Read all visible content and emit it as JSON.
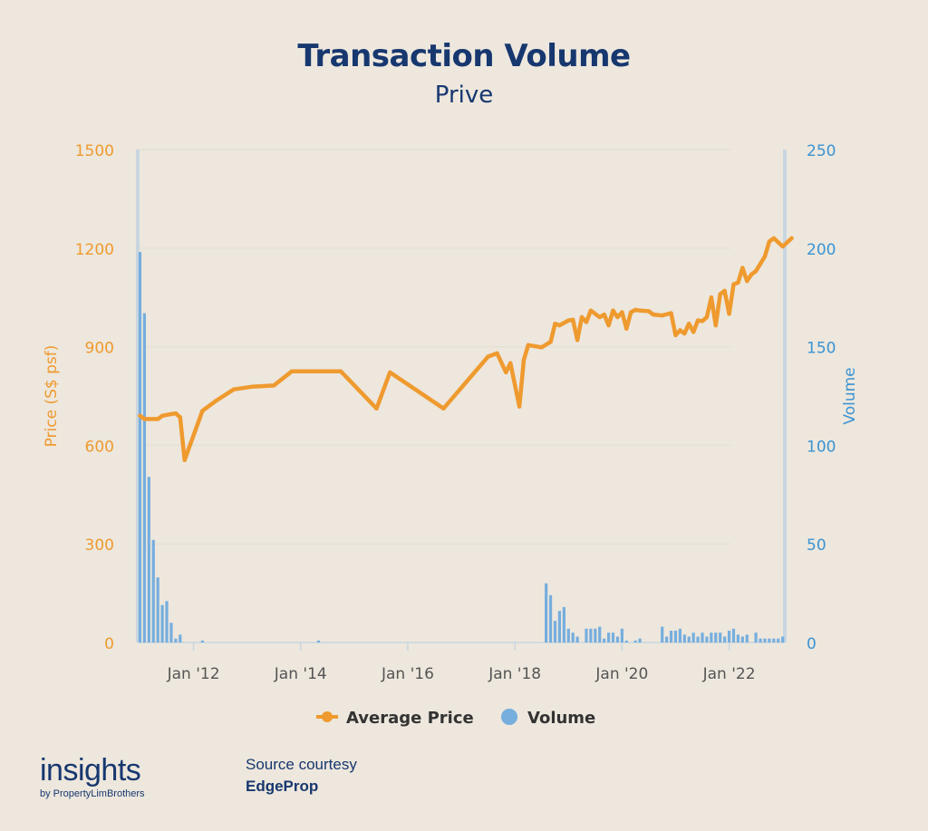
{
  "header": {
    "title": "Transaction Volume",
    "subtitle": "Prive"
  },
  "footer": {
    "brand_main": "insights",
    "brand_sub": "by PropertyLimBrothers",
    "source_label": "Source courtesy",
    "source_name": "EdgeProp"
  },
  "colors": {
    "price": "#ef9a2f",
    "volume": "#76aede",
    "volume_axis": "#3b93d3",
    "title": "#17376f",
    "grid": "#e4e0d6",
    "axis_line": "#c9d6e0",
    "background": "#ede7dd"
  },
  "chart_data": {
    "type": "line+bar",
    "title": "Transaction Volume",
    "subtitle": "Prive",
    "x_axis": {
      "type": "date",
      "range": [
        "2010-12",
        "2022-11"
      ],
      "tick_labels": [
        "Jan '12",
        "Jan '14",
        "Jan '16",
        "Jan '18",
        "Jan '20",
        "Jan '22"
      ],
      "tick_dates": [
        "2012-01",
        "2014-01",
        "2016-01",
        "2018-01",
        "2020-01",
        "2022-01"
      ]
    },
    "y_left": {
      "label": "Price (S$ psf)",
      "range": [
        0,
        1500
      ],
      "ticks": [
        "0",
        "300",
        "600",
        "900",
        "1200",
        "1500"
      ],
      "color": "#ef9a2f"
    },
    "y_right": {
      "label": "Volume",
      "range": [
        0,
        250
      ],
      "ticks": [
        "0",
        "50",
        "100",
        "150",
        "200",
        "250"
      ],
      "color": "#3b93d3"
    },
    "grid": true,
    "legend": {
      "placement": "bottom",
      "items": [
        {
          "name": "Average Price",
          "marker": "line-dot",
          "color": "#ef9a2f"
        },
        {
          "name": "Volume",
          "marker": "circle",
          "color": "#76aede"
        }
      ]
    },
    "series": [
      {
        "name": "Average Price",
        "axis": "left",
        "type": "line",
        "points": [
          [
            "2011-01",
            690
          ],
          [
            "2011-02",
            680
          ],
          [
            "2011-03",
            680
          ],
          [
            "2011-05",
            680
          ],
          [
            "2011-06",
            690
          ],
          [
            "2011-08",
            695
          ],
          [
            "2011-09",
            697
          ],
          [
            "2011-10",
            685
          ],
          [
            "2011-11",
            555
          ],
          [
            "2012-03",
            705
          ],
          [
            "2012-06",
            735
          ],
          [
            "2012-10",
            770
          ],
          [
            "2013-02",
            778
          ],
          [
            "2013-07",
            782
          ],
          [
            "2013-11",
            825
          ],
          [
            "2014-05",
            825
          ],
          [
            "2014-10",
            825
          ],
          [
            "2015-06",
            712
          ],
          [
            "2015-09",
            822
          ],
          [
            "2016-09",
            712
          ],
          [
            "2017-07",
            870
          ],
          [
            "2017-09",
            880
          ],
          [
            "2017-11",
            822
          ],
          [
            "2017-12",
            850
          ],
          [
            "2018-02",
            718
          ],
          [
            "2018-03",
            860
          ],
          [
            "2018-04",
            905
          ],
          [
            "2018-07",
            898
          ],
          [
            "2018-09",
            915
          ],
          [
            "2018-10",
            970
          ],
          [
            "2018-11",
            965
          ],
          [
            "2019-01",
            980
          ],
          [
            "2019-02",
            982
          ],
          [
            "2019-03",
            920
          ],
          [
            "2019-04",
            990
          ],
          [
            "2019-05",
            975
          ],
          [
            "2019-06",
            1010
          ],
          [
            "2019-08",
            990
          ],
          [
            "2019-09",
            998
          ],
          [
            "2019-10",
            965
          ],
          [
            "2019-11",
            1010
          ],
          [
            "2019-12",
            990
          ],
          [
            "2020-01",
            1005
          ],
          [
            "2020-02",
            955
          ],
          [
            "2020-03",
            1005
          ],
          [
            "2020-04",
            1012
          ],
          [
            "2020-05",
            1010
          ],
          [
            "2020-07",
            1008
          ],
          [
            "2020-08",
            998
          ],
          [
            "2020-10",
            995
          ],
          [
            "2020-12",
            1002
          ],
          [
            "2021-01",
            935
          ],
          [
            "2021-02",
            950
          ],
          [
            "2021-03",
            940
          ],
          [
            "2021-04",
            970
          ],
          [
            "2021-05",
            945
          ],
          [
            "2021-06",
            980
          ],
          [
            "2021-07",
            978
          ],
          [
            "2021-08",
            990
          ],
          [
            "2021-09",
            1050
          ],
          [
            "2021-10",
            965
          ],
          [
            "2021-11",
            1060
          ],
          [
            "2021-12",
            1070
          ],
          [
            "2022-01",
            1000
          ],
          [
            "2022-02",
            1090
          ],
          [
            "2022-03",
            1095
          ],
          [
            "2022-04",
            1140
          ],
          [
            "2022-05",
            1100
          ],
          [
            "2022-06",
            1120
          ],
          [
            "2022-07",
            1130
          ],
          [
            "2022-09",
            1175
          ],
          [
            "2022-10",
            1220
          ],
          [
            "2022-11",
            1230
          ],
          [
            "2023-01",
            1205
          ],
          [
            "2023-03",
            1230
          ]
        ]
      },
      {
        "name": "Volume",
        "axis": "right",
        "type": "bar",
        "points": [
          [
            "2011-01",
            198
          ],
          [
            "2011-02",
            167
          ],
          [
            "2011-03",
            84
          ],
          [
            "2011-04",
            52
          ],
          [
            "2011-05",
            33
          ],
          [
            "2011-06",
            19
          ],
          [
            "2011-07",
            21
          ],
          [
            "2011-08",
            10
          ],
          [
            "2011-09",
            2
          ],
          [
            "2011-10",
            4
          ],
          [
            "2012-03",
            1
          ],
          [
            "2014-05",
            1
          ],
          [
            "2018-08",
            30
          ],
          [
            "2018-09",
            24
          ],
          [
            "2018-10",
            11
          ],
          [
            "2018-11",
            16
          ],
          [
            "2018-12",
            18
          ],
          [
            "2019-01",
            7
          ],
          [
            "2019-02",
            5
          ],
          [
            "2019-03",
            3
          ],
          [
            "2019-05",
            7
          ],
          [
            "2019-06",
            7
          ],
          [
            "2019-07",
            7
          ],
          [
            "2019-08",
            8
          ],
          [
            "2019-09",
            2
          ],
          [
            "2019-10",
            5
          ],
          [
            "2019-11",
            5
          ],
          [
            "2019-12",
            3
          ],
          [
            "2020-01",
            7
          ],
          [
            "2020-02",
            1
          ],
          [
            "2020-04",
            1
          ],
          [
            "2020-05",
            2
          ],
          [
            "2020-10",
            8
          ],
          [
            "2020-11",
            3
          ],
          [
            "2020-12",
            6
          ],
          [
            "2021-01",
            6
          ],
          [
            "2021-02",
            7
          ],
          [
            "2021-03",
            4
          ],
          [
            "2021-04",
            3
          ],
          [
            "2021-05",
            5
          ],
          [
            "2021-06",
            3
          ],
          [
            "2021-07",
            5
          ],
          [
            "2021-08",
            3
          ],
          [
            "2021-09",
            5
          ],
          [
            "2021-10",
            5
          ],
          [
            "2021-11",
            5
          ],
          [
            "2021-12",
            3
          ],
          [
            "2022-01",
            6
          ],
          [
            "2022-02",
            7
          ],
          [
            "2022-03",
            4
          ],
          [
            "2022-04",
            3
          ],
          [
            "2022-05",
            4
          ],
          [
            "2022-07",
            5
          ],
          [
            "2022-08",
            2
          ],
          [
            "2022-09",
            2
          ],
          [
            "2022-10",
            2
          ],
          [
            "2022-11",
            2
          ],
          [
            "2022-12",
            2
          ],
          [
            "2023-01",
            3
          ]
        ]
      }
    ]
  }
}
